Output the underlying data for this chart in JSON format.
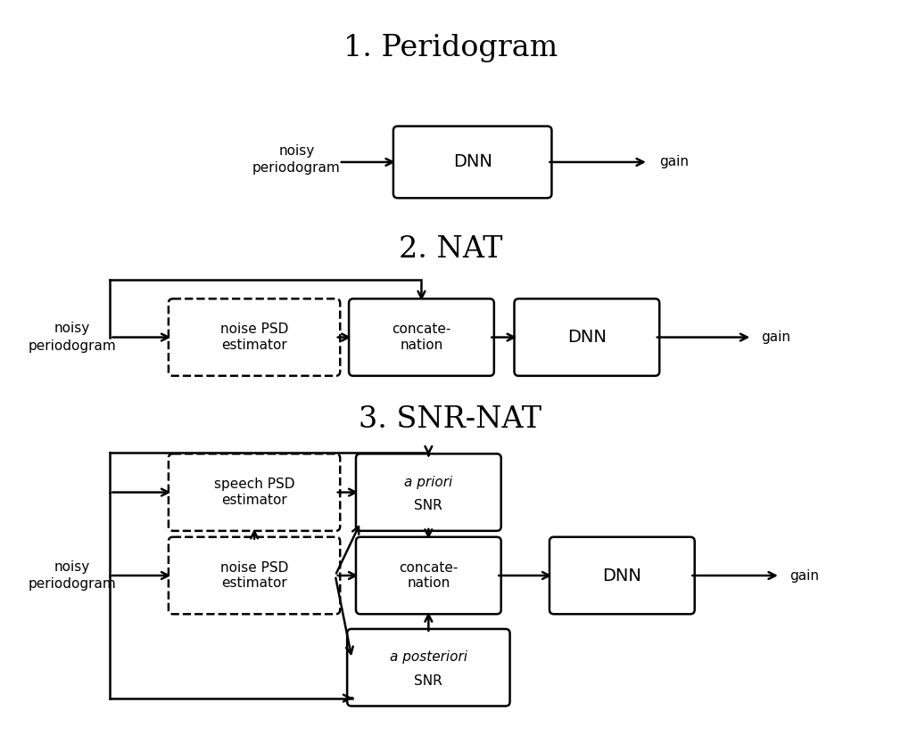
{
  "title1": "1. Peridogram",
  "title2": "2. NAT",
  "title3": "3. SNR-NAT",
  "bg_color": "#ffffff",
  "fig_width": 10.1,
  "fig_height": 8.25,
  "dpi": 100,
  "lw": 1.8
}
